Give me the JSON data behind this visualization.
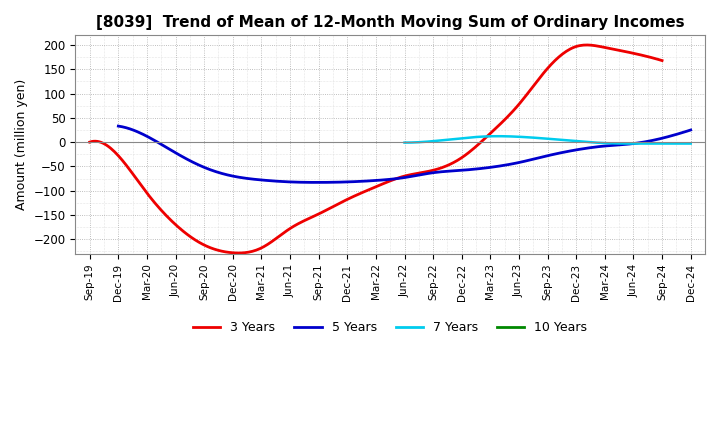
{
  "title": "[8039]  Trend of Mean of 12-Month Moving Sum of Ordinary Incomes",
  "ylabel": "Amount (million yen)",
  "background_color": "#ffffff",
  "plot_bg_color": "#ffffff",
  "ylim": [
    -230,
    220
  ],
  "yticks": [
    -200,
    -150,
    -100,
    -50,
    0,
    50,
    100,
    150,
    200
  ],
  "x_labels": [
    "Sep-19",
    "Dec-19",
    "Mar-20",
    "Jun-20",
    "Sep-20",
    "Dec-20",
    "Mar-21",
    "Jun-21",
    "Sep-21",
    "Dec-21",
    "Mar-22",
    "Jun-22",
    "Sep-22",
    "Dec-22",
    "Mar-23",
    "Jun-23",
    "Sep-23",
    "Dec-23",
    "Mar-24",
    "Jun-24",
    "Sep-24",
    "Dec-24"
  ],
  "series": {
    "3 Years": {
      "color": "#ee0000",
      "linewidth": 2.0,
      "values": [
        0,
        -28,
        -105,
        -170,
        -212,
        -228,
        -218,
        -178,
        -148,
        -118,
        -92,
        -70,
        -58,
        -32,
        18,
        78,
        152,
        197,
        195,
        183,
        168,
        null
      ]
    },
    "5 Years": {
      "color": "#0000cc",
      "linewidth": 2.0,
      "values": [
        null,
        33,
        12,
        -22,
        -52,
        -70,
        -78,
        -82,
        -83,
        -82,
        -79,
        -73,
        -63,
        -58,
        -52,
        -42,
        -28,
        -16,
        -8,
        -3,
        8,
        25
      ]
    },
    "7 Years": {
      "color": "#00ccee",
      "linewidth": 1.8,
      "values": [
        null,
        null,
        null,
        null,
        null,
        null,
        null,
        null,
        null,
        null,
        null,
        -1,
        2,
        8,
        12,
        11,
        7,
        2,
        -2,
        -3,
        -3,
        -3
      ]
    },
    "10 Years": {
      "color": "#008800",
      "linewidth": 1.8,
      "values": [
        null,
        null,
        null,
        null,
        null,
        null,
        null,
        null,
        null,
        null,
        null,
        null,
        null,
        null,
        null,
        null,
        null,
        null,
        null,
        null,
        null,
        null
      ]
    }
  },
  "legend_labels": [
    "3 Years",
    "5 Years",
    "7 Years",
    "10 Years"
  ],
  "legend_colors": [
    "#ee0000",
    "#0000cc",
    "#00ccee",
    "#008800"
  ]
}
